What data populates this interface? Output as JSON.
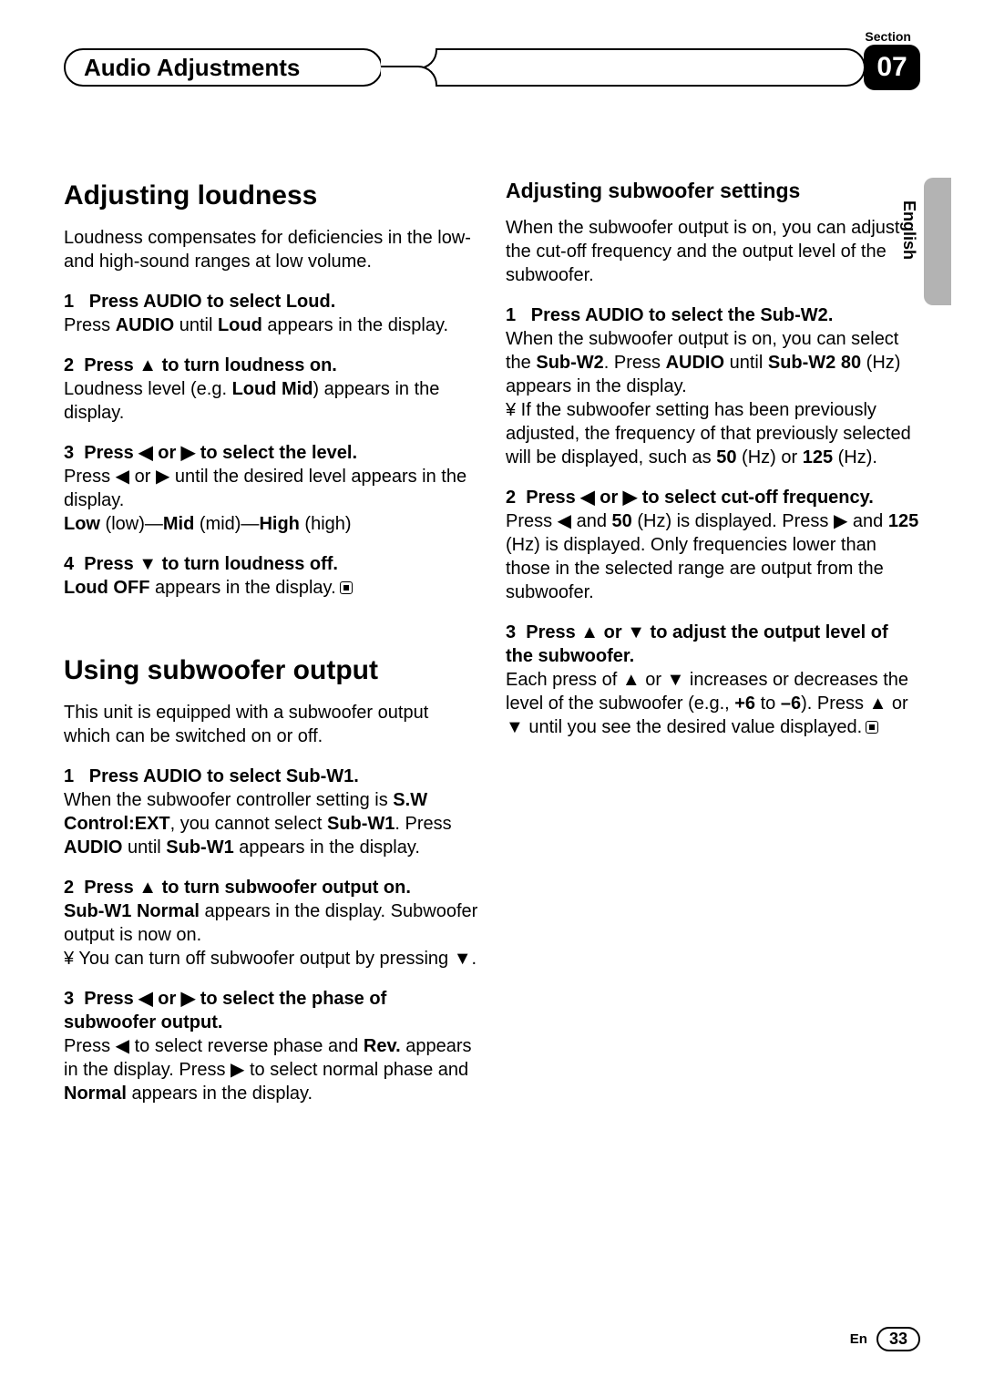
{
  "header": {
    "section_label": "Section",
    "chapter_title": "Audio Adjustments",
    "section_number": "07"
  },
  "lang_tab": "English",
  "left": {
    "h1a": "Adjusting loudness",
    "intro_a": "Loudness compensates for deficiencies in the low- and high-sound ranges at low volume.",
    "a_steps": [
      {
        "num": "1",
        "head_pre": "Press ",
        "head_b1": "AUDIO",
        "head_mid": " to select ",
        "head_b2": "Loud",
        "head_post": ".",
        "body_pre": "Press ",
        "body_b1": "AUDIO",
        "body_mid": " until ",
        "body_b2": "Loud",
        "body_post": " appears in the display."
      },
      {
        "num": "2",
        "head": "Press ▲ to turn loudness on.",
        "body_pre": "Loudness level (e.g. ",
        "body_b1": "Loud Mid",
        "body_post": ") appears in the display."
      },
      {
        "num": "3",
        "head": "Press ◀ or ▶ to select the level.",
        "body": "Press ◀ or ▶ until the desired level appears in the display.",
        "levels_low_b": "Low",
        "levels_low": " (low)—",
        "levels_mid_b": "Mid",
        "levels_mid": " (mid)—",
        "levels_high_b": "High",
        "levels_high": " (high)"
      },
      {
        "num": "4",
        "head": "Press ▼ to turn loudness off.",
        "body_b1": "Loud OFF",
        "body_post": " appears in the display."
      }
    ],
    "h1b": "Using subwoofer output",
    "intro_b": "This unit is equipped with a subwoofer output which can be switched on or off.",
    "b_steps": [
      {
        "num": "1",
        "head_pre": "Press ",
        "head_b1": "AUDIO",
        "head_mid": " to select ",
        "head_b2": "Sub-W1",
        "head_post": ".",
        "body_p1_pre": "When the subwoofer controller setting is ",
        "body_p1_b1": "S.W Control:EXT",
        "body_p1_mid": ", you cannot select ",
        "body_p1_b2": "Sub-W1",
        "body_p1_mid2": ". Press ",
        "body_p1_b3": "AUDIO",
        "body_p1_mid3": " until ",
        "body_p1_b4": "Sub-W1",
        "body_p1_post": " appears in the display."
      },
      {
        "num": "2",
        "head": "Press ▲ to turn subwoofer output on.",
        "body_b1": "Sub-W1 Normal",
        "body_mid": " appears in the display. Subwoofer output is now on.",
        "note": "¥ You can turn off subwoofer output by pressing ▼."
      },
      {
        "num": "3",
        "head": "Press ◀ or ▶ to select the phase of subwoofer output.",
        "body_pre": "Press ◀ to select reverse phase and ",
        "body_b1": "Rev.",
        "body_mid": " appears in the display. Press ▶ to select normal phase and ",
        "body_b2": "Normal",
        "body_post": " appears in the display."
      }
    ]
  },
  "right": {
    "h2": "Adjusting subwoofer settings",
    "intro": "When the subwoofer output is on, you can adjust the cut-off frequency and the output level of the subwoofer.",
    "steps": [
      {
        "num": "1",
        "head_pre": "Press ",
        "head_b1": "AUDIO",
        "head_mid": " to select the ",
        "head_b2": "Sub-W2",
        "head_post": ".",
        "body_pre": "When the subwoofer output is on, you can select the ",
        "body_b1": "Sub-W2",
        "body_mid": ". Press ",
        "body_b2": "AUDIO",
        "body_mid2": " until ",
        "body_b3": "Sub-W2 80",
        "body_post": " (Hz) appears in the display.",
        "note_pre": "¥ If the subwoofer setting has been previously adjusted, the frequency of that previously selected will be displayed, such as ",
        "note_b1": "50",
        "note_mid": " (Hz) or ",
        "note_b2": "125",
        "note_post": " (Hz)."
      },
      {
        "num": "2",
        "head": "Press ◀ or ▶ to select cut-off frequency.",
        "body_pre": "Press ◀ and ",
        "body_b1": "50",
        "body_mid": " (Hz) is displayed. Press ▶ and ",
        "body_b2": "125",
        "body_post": " (Hz) is displayed. Only frequencies lower than those in the selected range are output from the subwoofer."
      },
      {
        "num": "3",
        "head": "Press ▲ or ▼ to adjust the output level of the subwoofer.",
        "body_pre": "Each press of ▲ or ▼ increases or decreases the level of the subwoofer (e.g., ",
        "body_b1": "+6",
        "body_mid": " to ",
        "body_b2": "–6",
        "body_post": "). Press ▲ or ▼ until you see the desired value displayed."
      }
    ]
  },
  "footer": {
    "lang": "En",
    "page": "33"
  }
}
